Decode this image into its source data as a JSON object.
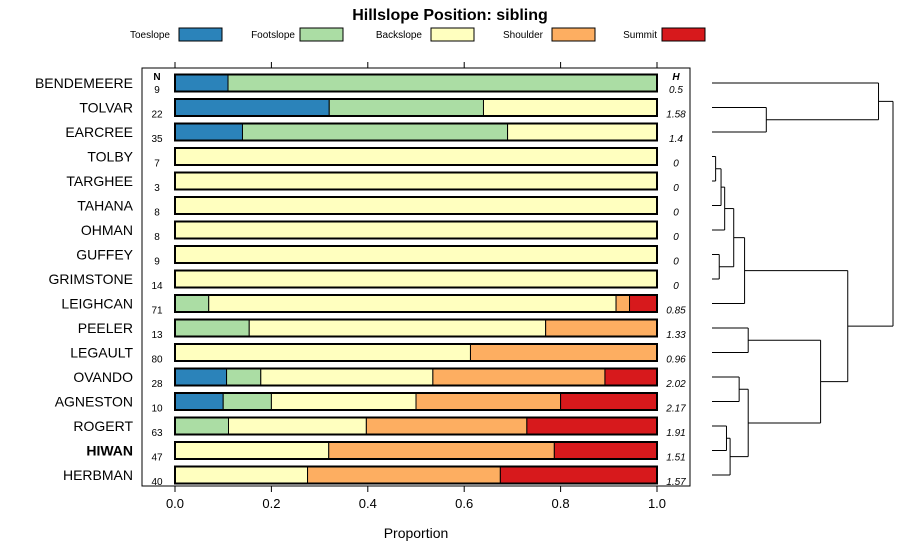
{
  "chart_data": {
    "type": "bar",
    "orientation": "horizontal",
    "stacked": true,
    "title": "Hillslope Position: sibling",
    "xlabel": "Proportion",
    "ylabel": "",
    "xlim": [
      0,
      1
    ],
    "x_ticks": [
      "0.0",
      "0.2",
      "0.4",
      "0.6",
      "0.8",
      "1.0"
    ],
    "n_header": "N",
    "h_header": "H",
    "legend": [
      {
        "name": "Toeslope",
        "color": "#2b83ba"
      },
      {
        "name": "Footslope",
        "color": "#abdda4"
      },
      {
        "name": "Backslope",
        "color": "#ffffbf"
      },
      {
        "name": "Shoulder",
        "color": "#fdae61"
      },
      {
        "name": "Summit",
        "color": "#d7191c"
      }
    ],
    "rows": [
      {
        "name": "BENDEMEERE",
        "n": "9",
        "h": "0.5",
        "bold": false,
        "values": [
          0.11,
          0.89,
          0,
          0,
          0
        ]
      },
      {
        "name": "TOLVAR",
        "n": "22",
        "h": "1.58",
        "bold": false,
        "values": [
          0.32,
          0.32,
          0.36,
          0,
          0
        ]
      },
      {
        "name": "EARCREE",
        "n": "35",
        "h": "1.4",
        "bold": false,
        "values": [
          0.14,
          0.55,
          0.31,
          0,
          0
        ]
      },
      {
        "name": "TOLBY",
        "n": "7",
        "h": "0",
        "bold": false,
        "values": [
          0,
          0,
          1,
          0,
          0
        ]
      },
      {
        "name": "TARGHEE",
        "n": "3",
        "h": "0",
        "bold": false,
        "values": [
          0,
          0,
          1,
          0,
          0
        ]
      },
      {
        "name": "TAHANA",
        "n": "8",
        "h": "0",
        "bold": false,
        "values": [
          0,
          0,
          1,
          0,
          0
        ]
      },
      {
        "name": "OHMAN",
        "n": "8",
        "h": "0",
        "bold": false,
        "values": [
          0,
          0,
          1,
          0,
          0
        ]
      },
      {
        "name": "GUFFEY",
        "n": "9",
        "h": "0",
        "bold": false,
        "values": [
          0,
          0,
          1,
          0,
          0
        ]
      },
      {
        "name": "GRIMSTONE",
        "n": "14",
        "h": "0",
        "bold": false,
        "values": [
          0,
          0,
          1,
          0,
          0
        ]
      },
      {
        "name": "LEIGHCAN",
        "n": "71",
        "h": "0.85",
        "bold": false,
        "values": [
          0,
          0.07,
          0.845,
          0.028,
          0.057
        ]
      },
      {
        "name": "PEELER",
        "n": "13",
        "h": "1.33",
        "bold": false,
        "values": [
          0,
          0.154,
          0.615,
          0.231,
          0
        ]
      },
      {
        "name": "LEGAULT",
        "n": "80",
        "h": "0.96",
        "bold": false,
        "values": [
          0,
          0,
          0.613,
          0.387,
          0
        ]
      },
      {
        "name": "OVANDO",
        "n": "28",
        "h": "2.02",
        "bold": false,
        "values": [
          0.107,
          0.071,
          0.357,
          0.357,
          0.108
        ]
      },
      {
        "name": "AGNESTON",
        "n": "10",
        "h": "2.17",
        "bold": false,
        "values": [
          0.1,
          0.1,
          0.3,
          0.3,
          0.2
        ]
      },
      {
        "name": "ROGERT",
        "n": "63",
        "h": "1.91",
        "bold": false,
        "values": [
          0,
          0.111,
          0.286,
          0.333,
          0.27
        ]
      },
      {
        "name": "HIWAN",
        "n": "47",
        "h": "1.51",
        "bold": true,
        "values": [
          0,
          0,
          0.319,
          0.468,
          0.213
        ]
      },
      {
        "name": "HERBMAN",
        "n": "40",
        "h": "1.57",
        "bold": false,
        "values": [
          0,
          0,
          0.275,
          0.4,
          0.325
        ]
      }
    ],
    "dendrogram": {
      "leaves": 17,
      "merges": [
        {
          "a": "L1",
          "b": "L2",
          "height": 0.3
        },
        {
          "a": "L0",
          "b": "M0",
          "height": 0.92
        },
        {
          "a": "L3",
          "b": "L4",
          "height": 0.02
        },
        {
          "a": "M2",
          "b": "L5",
          "height": 0.05
        },
        {
          "a": "M3",
          "b": "L6",
          "height": 0.07
        },
        {
          "a": "L7",
          "b": "L8",
          "height": 0.04
        },
        {
          "a": "M4",
          "b": "M5",
          "height": 0.12
        },
        {
          "a": "M6",
          "b": "L9",
          "height": 0.18
        },
        {
          "a": "L10",
          "b": "L11",
          "height": 0.2
        },
        {
          "a": "L14",
          "b": "L15",
          "height": 0.08
        },
        {
          "a": "M9",
          "b": "L16",
          "height": 0.1
        },
        {
          "a": "L12",
          "b": "L13",
          "height": 0.15
        },
        {
          "a": "M11",
          "b": "M10",
          "height": 0.2
        },
        {
          "a": "M8",
          "b": "M12",
          "height": 0.6
        },
        {
          "a": "M7",
          "b": "M13",
          "height": 0.75
        },
        {
          "a": "M1",
          "b": "M14",
          "height": 1.0
        }
      ]
    }
  }
}
